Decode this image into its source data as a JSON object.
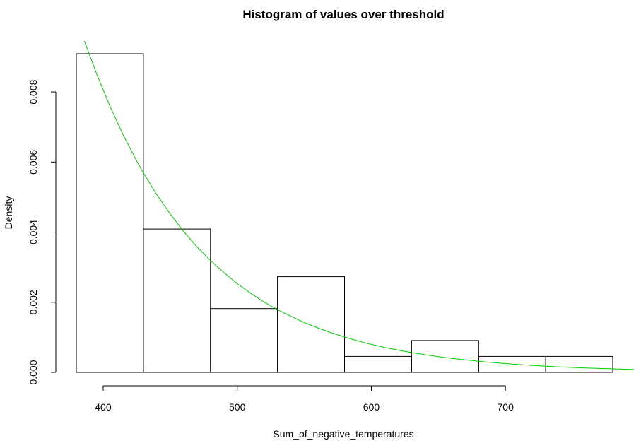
{
  "chart_data": {
    "type": "bar",
    "subtype": "histogram",
    "title": "Histogram of values over threshold",
    "xlabel": "Sum_of_negative_temperatures",
    "ylabel": "Density",
    "bins": [
      {
        "start": 380,
        "end": 430,
        "density": 0.00909
      },
      {
        "start": 430,
        "end": 480,
        "density": 0.00409
      },
      {
        "start": 480,
        "end": 530,
        "density": 0.00182
      },
      {
        "start": 530,
        "end": 580,
        "density": 0.00273
      },
      {
        "start": 580,
        "end": 630,
        "density": 0.000455
      },
      {
        "start": 630,
        "end": 680,
        "density": 0.00091
      },
      {
        "start": 680,
        "end": 730,
        "density": 0.000455
      },
      {
        "start": 730,
        "end": 780,
        "density": 0.000455
      }
    ],
    "x_ticks": [
      400,
      500,
      600,
      700
    ],
    "x_tick_labels": [
      "400",
      "500",
      "600",
      "700"
    ],
    "y_ticks": [
      0,
      0.002,
      0.004,
      0.006,
      0.008
    ],
    "y_tick_labels": [
      "0.000",
      "0.002",
      "0.004",
      "0.006",
      "0.008"
    ],
    "xlim": [
      380,
      796
    ],
    "ylim": [
      0,
      0.00909
    ],
    "fitted_curve": {
      "description": "exponential density fit",
      "color": "#00cc00",
      "points": [
        [
          386,
          0.00945
        ],
        [
          395,
          0.00853
        ],
        [
          405,
          0.0076
        ],
        [
          415,
          0.00677
        ],
        [
          425,
          0.00603
        ],
        [
          430,
          0.00569
        ],
        [
          440,
          0.00507
        ],
        [
          450,
          0.00452
        ],
        [
          460,
          0.00402
        ],
        [
          470,
          0.00358
        ],
        [
          480,
          0.00319
        ],
        [
          490,
          0.00285
        ],
        [
          500,
          0.00253
        ],
        [
          510,
          0.00226
        ],
        [
          520,
          0.00201
        ],
        [
          530,
          0.00179
        ],
        [
          540,
          0.0016
        ],
        [
          550,
          0.00142
        ],
        [
          560,
          0.00127
        ],
        [
          570,
          0.00113
        ],
        [
          580,
          0.00101
        ],
        [
          590,
          0.000897
        ],
        [
          600,
          0.000799
        ],
        [
          610,
          0.000712
        ],
        [
          620,
          0.000634
        ],
        [
          630,
          0.000565
        ],
        [
          640,
          0.000503
        ],
        [
          650,
          0.000448
        ],
        [
          660,
          0.000399
        ],
        [
          670,
          0.000356
        ],
        [
          680,
          0.000317
        ],
        [
          690,
          0.000282
        ],
        [
          700,
          0.000251
        ],
        [
          710,
          0.000224
        ],
        [
          720,
          0.0002
        ],
        [
          730,
          0.000178
        ],
        [
          740,
          0.000158
        ],
        [
          750,
          0.000141
        ],
        [
          760,
          0.000126
        ],
        [
          770,
          0.000112
        ],
        [
          780,
          9.98e-05
        ],
        [
          790,
          8.89e-05
        ],
        [
          796,
          8.32e-05
        ]
      ]
    },
    "grid": false,
    "legend": "none"
  }
}
